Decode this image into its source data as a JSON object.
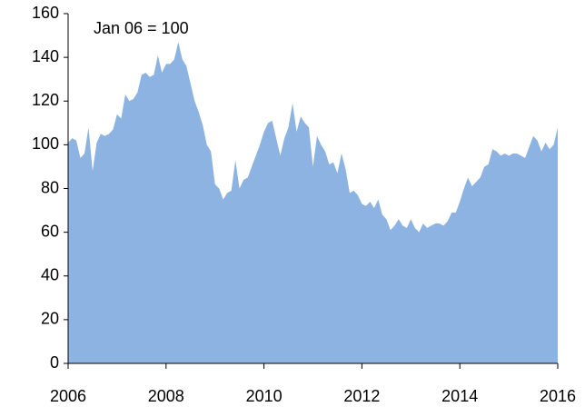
{
  "chart_data": {
    "type": "area",
    "annotation": "Jan 06 = 100",
    "categories": [
      "2006",
      null,
      null,
      null,
      null,
      null,
      null,
      null,
      null,
      null,
      null,
      null,
      null,
      null,
      null,
      null,
      null,
      null,
      null,
      null,
      null,
      null,
      null,
      null,
      "2008",
      null,
      null,
      null,
      null,
      null,
      null,
      null,
      null,
      null,
      null,
      null,
      null,
      null,
      null,
      null,
      null,
      null,
      null,
      null,
      null,
      null,
      null,
      null,
      "2010",
      null,
      null,
      null,
      null,
      null,
      null,
      null,
      null,
      null,
      null,
      null,
      null,
      null,
      null,
      null,
      null,
      null,
      null,
      null,
      null,
      null,
      null,
      null,
      "2012",
      null,
      null,
      null,
      null,
      null,
      null,
      null,
      null,
      null,
      null,
      null,
      null,
      null,
      null,
      null,
      null,
      null,
      null,
      null,
      null,
      null,
      null,
      null,
      "2014",
      null,
      null,
      null,
      null,
      null,
      null,
      null,
      null,
      null,
      null,
      null,
      null,
      null,
      null,
      null,
      null,
      null,
      null,
      null,
      null,
      null,
      null,
      null,
      "2016"
    ],
    "values": [
      101,
      103,
      102,
      94,
      96,
      108,
      88,
      101,
      105,
      104,
      105,
      107,
      114,
      112,
      123,
      120,
      121,
      124,
      132,
      133,
      131,
      132,
      141,
      133,
      137,
      137,
      139,
      147,
      139,
      136,
      128,
      120,
      115,
      109,
      100,
      97,
      82,
      80,
      75,
      78,
      79,
      93,
      80,
      84,
      85,
      90,
      95,
      100,
      106,
      110,
      111,
      103,
      95,
      103,
      108,
      119,
      106,
      113,
      110,
      108,
      90,
      104,
      100,
      97,
      91,
      92,
      87,
      96,
      89,
      78,
      79,
      77,
      73,
      72,
      74,
      71,
      75,
      68,
      66,
      61,
      63,
      66,
      63,
      62,
      66,
      62,
      60,
      64,
      62,
      63,
      64,
      64,
      63,
      65,
      69,
      69,
      74,
      80,
      85,
      81,
      83,
      85,
      90,
      91,
      98,
      97,
      95,
      96,
      95,
      96,
      96,
      95,
      94,
      99,
      104,
      102,
      97,
      101,
      98,
      100,
      108
    ],
    "color": "#8db3e2",
    "ylim": [
      0,
      160
    ],
    "yticks": [
      0,
      20,
      40,
      60,
      80,
      100,
      120,
      140,
      160
    ],
    "grid": false
  }
}
